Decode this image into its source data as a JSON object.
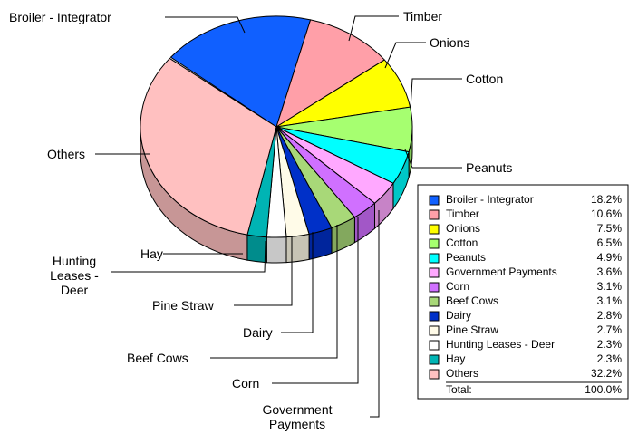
{
  "chart_data": {
    "type": "pie3d",
    "categories": [
      "Broiler - Integrator",
      "Timber",
      "Onions",
      "Cotton",
      "Peanuts",
      "Government Payments",
      "Corn",
      "Beef Cows",
      "Dairy",
      "Pine Straw",
      "Hunting Leases - Deer",
      "Hay",
      "Others"
    ],
    "values": [
      18.2,
      10.6,
      7.5,
      6.5,
      4.9,
      3.6,
      3.1,
      3.1,
      2.8,
      2.7,
      2.3,
      2.3,
      32.2
    ],
    "value_labels": [
      "18.2%",
      "10.6%",
      "7.5%",
      "6.5%",
      "4.9%",
      "3.6%",
      "3.1%",
      "3.1%",
      "2.8%",
      "2.7%",
      "2.3%",
      "2.3%",
      "32.2%"
    ],
    "colors": [
      "#1060ff",
      "#ff9fa8",
      "#ffff00",
      "#a6ff70",
      "#00ffff",
      "#ffa8ff",
      "#d070ff",
      "#a8d878",
      "#0030c8",
      "#fffbe8",
      "#ffffff",
      "#00b4b4",
      "#ffc0c0"
    ],
    "total": {
      "label": "Total:",
      "value": 100,
      "value_label": "100.0%"
    },
    "legend": "right"
  }
}
